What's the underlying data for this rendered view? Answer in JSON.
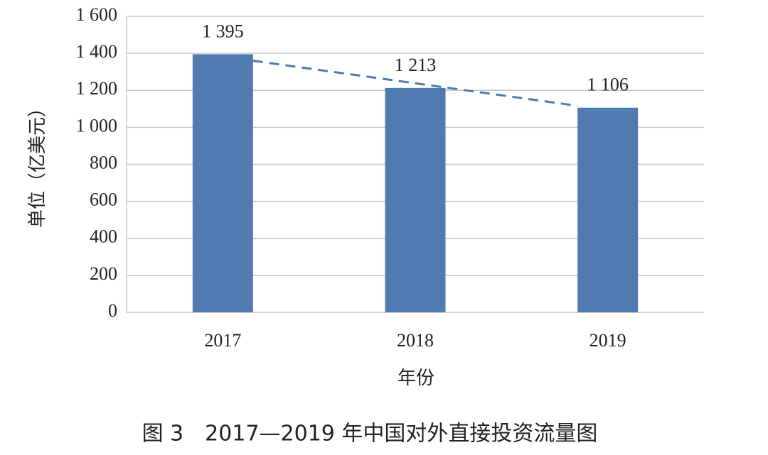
{
  "chart_data": {
    "type": "bar",
    "caption": "图 3　2017—2019 年中国对外直接投资流量图",
    "xlabel": "年份",
    "ylabel": "单位（亿美元）",
    "categories": [
      "2017",
      "2018",
      "2019"
    ],
    "values": [
      1395,
      1213,
      1106
    ],
    "value_labels": [
      "1 395",
      "1 213",
      "1 106"
    ],
    "color": "#4f7bb1",
    "ylim": [
      0,
      1600
    ],
    "yticks": [
      0,
      200,
      400,
      600,
      800,
      {
        "value": 1000,
        "label": "1 000"
      },
      {
        "value": 1200,
        "label": "1 200"
      },
      {
        "value": 1400,
        "label": "1 400"
      },
      {
        "value": 1600,
        "label": "1 600"
      }
    ],
    "grid": true,
    "trendline": true,
    "trendline_color": "#4f7bb1"
  }
}
